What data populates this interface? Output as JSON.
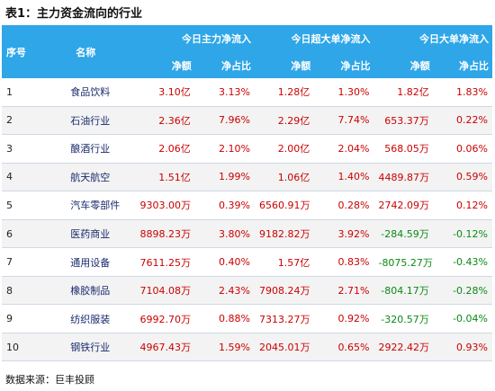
{
  "title": "表1：主力资金流向的行业",
  "headers": {
    "index": "序号",
    "name": "名称",
    "groups": [
      "今日主力净流入",
      "今日超大单净流入",
      "今日大单净流入"
    ],
    "amount": "净额",
    "ratio": "净占比"
  },
  "rows": [
    {
      "idx": "1",
      "name": "食品饮料",
      "main_amt": "3.10亿",
      "main_pct": "3.13%",
      "xl_amt": "1.28亿",
      "xl_pct": "1.30%",
      "lg_amt": "1.82亿",
      "lg_pct": "1.83%"
    },
    {
      "idx": "2",
      "name": "石油行业",
      "main_amt": "2.36亿",
      "main_pct": "7.96%",
      "xl_amt": "2.29亿",
      "xl_pct": "7.74%",
      "lg_amt": "653.37万",
      "lg_pct": "0.22%"
    },
    {
      "idx": "3",
      "name": "酿酒行业",
      "main_amt": "2.06亿",
      "main_pct": "2.10%",
      "xl_amt": "2.00亿",
      "xl_pct": "2.04%",
      "lg_amt": "568.05万",
      "lg_pct": "0.06%"
    },
    {
      "idx": "4",
      "name": "航天航空",
      "main_amt": "1.51亿",
      "main_pct": "1.99%",
      "xl_amt": "1.06亿",
      "xl_pct": "1.40%",
      "lg_amt": "4489.87万",
      "lg_pct": "0.59%"
    },
    {
      "idx": "5",
      "name": "汽车零部件",
      "main_amt": "9303.00万",
      "main_pct": "0.39%",
      "xl_amt": "6560.91万",
      "xl_pct": "0.28%",
      "lg_amt": "2742.09万",
      "lg_pct": "0.12%"
    },
    {
      "idx": "6",
      "name": "医药商业",
      "main_amt": "8898.23万",
      "main_pct": "3.80%",
      "xl_amt": "9182.82万",
      "xl_pct": "3.92%",
      "lg_amt": "-284.59万",
      "lg_pct": "-0.12%"
    },
    {
      "idx": "7",
      "name": "通用设备",
      "main_amt": "7611.25万",
      "main_pct": "0.40%",
      "xl_amt": "1.57亿",
      "xl_pct": "0.83%",
      "lg_amt": "-8075.27万",
      "lg_pct": "-0.43%"
    },
    {
      "idx": "8",
      "name": "橡胶制品",
      "main_amt": "7104.08万",
      "main_pct": "2.43%",
      "xl_amt": "7908.24万",
      "xl_pct": "2.71%",
      "lg_amt": "-804.17万",
      "lg_pct": "-0.28%"
    },
    {
      "idx": "9",
      "name": "纺织服装",
      "main_amt": "6992.70万",
      "main_pct": "0.88%",
      "xl_amt": "7313.27万",
      "xl_pct": "0.92%",
      "lg_amt": "-320.57万",
      "lg_pct": "-0.04%"
    },
    {
      "idx": "10",
      "name": "钢铁行业",
      "main_amt": "4967.43万",
      "main_pct": "1.59%",
      "xl_amt": "2045.01万",
      "xl_pct": "0.65%",
      "lg_amt": "2922.42万",
      "lg_pct": "0.93%"
    }
  ],
  "colors": {
    "header_bg": "#2ea6e8",
    "positive": "#cc0000",
    "negative": "#0a8a14"
  },
  "source": "数据来源：巨丰投顾"
}
